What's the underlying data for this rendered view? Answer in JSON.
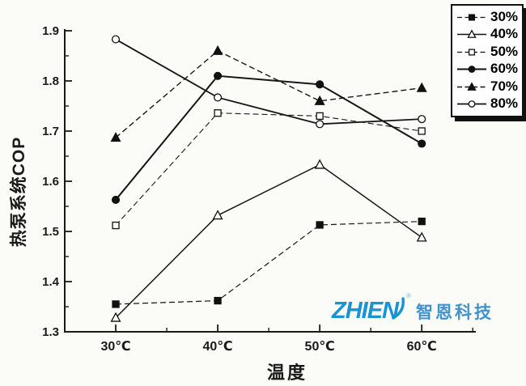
{
  "page": {
    "background": "#fbfbf8"
  },
  "watermark": {
    "logo_text": "ZHIEN",
    "registered": "®",
    "company_name": "智恩科技",
    "logo_color": "#1694d3",
    "company_color": "#4292cc"
  },
  "chart_data": {
    "type": "line",
    "title": "",
    "xlabel": "温度",
    "ylabel": "热泵系统COP",
    "grid": false,
    "legend_position": "top-right",
    "legend_entries": [
      "30%",
      "40%",
      "50%",
      "60%",
      "70%",
      "80%"
    ],
    "x": [
      30,
      40,
      50,
      60
    ],
    "categories": [
      "30℃",
      "40℃",
      "50℃",
      "60℃"
    ],
    "xlim": [
      25,
      65.3
    ],
    "ylim": [
      1.3,
      1.9
    ],
    "x_ticks": {
      "major_values": [
        30,
        40,
        50,
        60
      ],
      "major_labels": [
        "30℃",
        "40℃",
        "50℃",
        "60℃"
      ],
      "minor_values": [
        35,
        45,
        55,
        65
      ]
    },
    "y_ticks": {
      "major_values": [
        1.3,
        1.4,
        1.5,
        1.6,
        1.7,
        1.8,
        1.9
      ],
      "major_labels": [
        "1.3",
        "1.4",
        "1.5",
        "1.6",
        "1.7",
        "1.8",
        "1.9"
      ],
      "minor_values": [
        1.35,
        1.45,
        1.55,
        1.65,
        1.75,
        1.85
      ]
    },
    "axis_color": "#1a1a1a",
    "series": [
      {
        "name": "30%",
        "marker": "square-filled",
        "line": "dashed",
        "values": [
          1.355,
          1.362,
          1.513,
          1.52
        ]
      },
      {
        "name": "40%",
        "marker": "triangle-open",
        "line": "solid",
        "values": [
          1.328,
          1.532,
          1.633,
          1.488
        ]
      },
      {
        "name": "50%",
        "marker": "square-open",
        "line": "dashed",
        "values": [
          1.512,
          1.736,
          1.73,
          1.7
        ]
      },
      {
        "name": "60%",
        "marker": "circle-filled",
        "line": "solid",
        "values": [
          1.563,
          1.81,
          1.793,
          1.675
        ]
      },
      {
        "name": "70%",
        "marker": "triangle-filled",
        "line": "dashed",
        "values": [
          1.687,
          1.86,
          1.76,
          1.786
        ]
      },
      {
        "name": "80%",
        "marker": "circle-open",
        "line": "solid",
        "values": [
          1.883,
          1.767,
          1.714,
          1.724
        ]
      }
    ]
  }
}
